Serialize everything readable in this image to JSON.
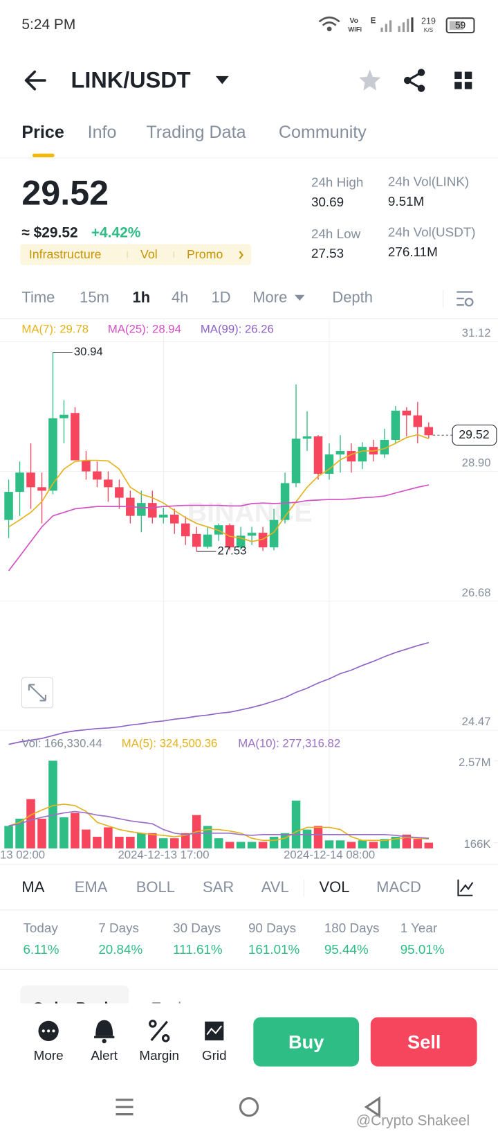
{
  "status_bar": {
    "time": "5:24 PM",
    "vo": "Vo",
    "wifi": "WiFi",
    "network": "E",
    "speed": "219",
    "speed_unit": "K/S",
    "battery": "59"
  },
  "header": {
    "pair": "LINK/USDT"
  },
  "tabs": [
    "Price",
    "Info",
    "Trading Data",
    "Community"
  ],
  "summary": {
    "price": "29.52",
    "usd": "≈ $29.52",
    "change": "+4.42%",
    "tags": [
      "Infrastructure",
      "Vol",
      "Promo"
    ]
  },
  "stats": [
    {
      "label": "24h High",
      "value": "30.69"
    },
    {
      "label": "24h Vol(LINK)",
      "value": "9.51M"
    },
    {
      "label": "24h Low",
      "value": "27.53"
    },
    {
      "label": "24h Vol(USDT)",
      "value": "276.11M"
    }
  ],
  "intervals": [
    "Time",
    "15m",
    "1h",
    "4h",
    "1D",
    "More",
    "Depth"
  ],
  "chart_watermark": "BINANCE",
  "chart_data": {
    "type": "candlestick",
    "x_labels": [
      "13 02:00",
      "2024-12-13 17:00",
      "2024-12-14 08:00"
    ],
    "open": [
      28.07,
      28.55,
      28.88,
      28.63,
      28.57,
      29.81,
      29.9,
      29.09,
      28.9,
      28.76,
      28.63,
      28.45,
      28.14,
      28.36,
      28.11,
      28.16,
      28.01,
      27.83,
      27.61,
      27.82,
      27.98,
      27.6,
      27.8,
      27.85,
      27.6,
      28.07,
      28.7,
      29.46,
      29.5,
      28.86,
      29.19,
      29.25,
      29.07,
      29.32,
      29.19,
      29.44,
      29.94,
      29.86,
      29.66
    ],
    "high": [
      28.76,
      29.07,
      29.38,
      28.88,
      30.94,
      30.12,
      30.0,
      29.25,
      29.07,
      28.9,
      28.76,
      28.57,
      28.57,
      28.57,
      28.28,
      28.26,
      28.13,
      27.95,
      27.95,
      28.01,
      28.01,
      27.95,
      27.95,
      27.95,
      28.26,
      28.88,
      30.39,
      29.93,
      29.52,
      29.38,
      29.52,
      29.38,
      29.4,
      29.44,
      29.63,
      30.02,
      30.0,
      30.09,
      29.74
    ],
    "low": [
      27.76,
      28.14,
      28.26,
      28.01,
      28.51,
      29.38,
      29.09,
      28.76,
      28.63,
      28.38,
      28.26,
      28.01,
      27.86,
      28.01,
      28.01,
      27.83,
      27.64,
      27.53,
      27.58,
      27.71,
      27.55,
      27.56,
      27.64,
      27.54,
      27.55,
      28.01,
      28.63,
      29.25,
      28.76,
      28.76,
      28.88,
      28.88,
      28.94,
      29.07,
      29.13,
      29.38,
      29.5,
      29.38,
      29.47
    ],
    "close": [
      28.55,
      28.88,
      28.63,
      28.57,
      29.81,
      29.87,
      29.09,
      28.9,
      28.76,
      28.63,
      28.45,
      28.14,
      28.36,
      28.11,
      28.16,
      28.01,
      27.79,
      27.61,
      27.82,
      27.98,
      27.6,
      27.8,
      27.85,
      27.6,
      28.07,
      28.7,
      29.46,
      29.5,
      28.86,
      29.19,
      29.25,
      29.07,
      29.32,
      29.19,
      29.44,
      29.94,
      29.86,
      29.66,
      29.52
    ],
    "up_color": "#2ebd85",
    "down_color": "#f6465d",
    "ylim": [
      24.47,
      31.5
    ],
    "yticks": [
      31.12,
      {
        "value": 28.9,
        "label": "28.90"
      },
      26.68,
      24.47
    ],
    "grid": true,
    "max_label": 30.94,
    "min_label": 27.53,
    "last_price": 29.52,
    "ma_series": [
      {
        "name": "MA(7): 29.78",
        "color": "#e4b21c",
        "values": [
          27.95,
          28.07,
          28.2,
          28.38,
          28.69,
          28.94,
          29.07,
          29.09,
          29.09,
          29.08,
          28.94,
          28.63,
          28.51,
          28.45,
          28.36,
          28.23,
          28.11,
          28.01,
          27.95,
          27.89,
          27.79,
          27.76,
          27.7,
          27.74,
          27.86,
          28.13,
          28.38,
          28.63,
          28.82,
          28.94,
          29.1,
          29.19,
          29.25,
          29.25,
          29.29,
          29.38,
          29.48,
          29.53,
          29.46
        ]
      },
      {
        "name": "MA(25): 28.94",
        "color": "#d24fc4",
        "values": [
          27.2,
          27.45,
          27.7,
          27.95,
          28.14,
          28.2,
          28.26,
          28.28,
          28.3,
          28.3,
          28.3,
          28.3,
          28.28,
          28.28,
          28.3,
          28.31,
          28.32,
          28.32,
          28.32,
          28.32,
          28.31,
          28.31,
          28.35,
          28.36,
          28.35,
          28.36,
          28.37,
          28.4,
          28.41,
          28.42,
          28.42,
          28.43,
          28.45,
          28.46,
          28.48,
          28.53,
          28.58,
          28.63,
          28.67
        ]
      },
      {
        "name": "MA(99): 26.26",
        "color": "#8e62c6",
        "values": [
          24.23,
          24.27,
          24.3,
          24.33,
          24.38,
          24.43,
          24.46,
          24.48,
          24.5,
          24.51,
          24.53,
          24.56,
          24.58,
          24.61,
          24.63,
          24.66,
          24.68,
          24.71,
          24.73,
          24.76,
          24.78,
          24.82,
          24.86,
          24.91,
          24.97,
          25.03,
          25.12,
          25.19,
          25.28,
          25.35,
          25.44,
          25.5,
          25.58,
          25.65,
          25.73,
          25.8,
          25.86,
          25.92,
          25.97
        ]
      }
    ],
    "volume": {
      "name": "Vol: 166,330.44",
      "values": [
        658000,
        871000,
        1444000,
        871000,
        2570000,
        913000,
        1041000,
        552000,
        340000,
        616000,
        340000,
        340000,
        446000,
        446000,
        297000,
        297000,
        446000,
        977000,
        658000,
        297000,
        191000,
        191000,
        191000,
        191000,
        340000,
        446000,
        1402000,
        552000,
        658000,
        234000,
        234000,
        191000,
        234000,
        191000,
        276000,
        340000,
        404000,
        276000,
        166330.44
      ],
      "ylim": [
        0,
        3462000
      ],
      "yticks": [
        {
          "value": 2570000,
          "label": "2.57M"
        },
        {
          "value": 166330.44,
          "label": "166K"
        }
      ],
      "series": [
        {
          "name": "MA(5): 324,500.36",
          "color": "#e4b21c",
          "values": [
            658000,
            765000,
            977000,
            1126000,
            1253000,
            1296000,
            1253000,
            1083000,
            765000,
            658000,
            552000,
            489000,
            446000,
            404000,
            382000,
            340000,
            382000,
            489000,
            552000,
            552000,
            510000,
            446000,
            297000,
            234000,
            234000,
            297000,
            489000,
            616000,
            616000,
            616000,
            552000,
            340000,
            234000,
            234000,
            234000,
            276000,
            319000,
            297000,
            276000
          ]
        },
        {
          "name": "MA(10): 277,316.82",
          "color": "#9b6fc6",
          "values": [
            658000,
            722000,
            828000,
            913000,
            977000,
            1041000,
            1083000,
            1041000,
            977000,
            935000,
            871000,
            807000,
            765000,
            722000,
            552000,
            446000,
            404000,
            446000,
            446000,
            446000,
            446000,
            404000,
            382000,
            404000,
            404000,
            404000,
            404000,
            404000,
            404000,
            404000,
            404000,
            404000,
            404000,
            404000,
            404000,
            382000,
            340000,
            319000,
            297000
          ]
        }
      ]
    }
  },
  "indicators": [
    "MA",
    "EMA",
    "BOLL",
    "SAR",
    "AVL",
    "VOL",
    "MACD"
  ],
  "performance": [
    {
      "label": "Today",
      "value": "6.11%"
    },
    {
      "label": "7 Days",
      "value": "20.84%"
    },
    {
      "label": "30 Days",
      "value": "111.61%"
    },
    {
      "label": "90 Days",
      "value": "161.01%"
    },
    {
      "label": "180 Days",
      "value": "95.44%"
    },
    {
      "label": "1 Year",
      "value": "95.01%"
    }
  ],
  "book_tabs": [
    "Order Book",
    "Trades"
  ],
  "actions": [
    "More",
    "Alert",
    "Margin",
    "Grid"
  ],
  "buy": "Buy",
  "sell": "Sell",
  "watermark": "@Crypto Shakeel"
}
